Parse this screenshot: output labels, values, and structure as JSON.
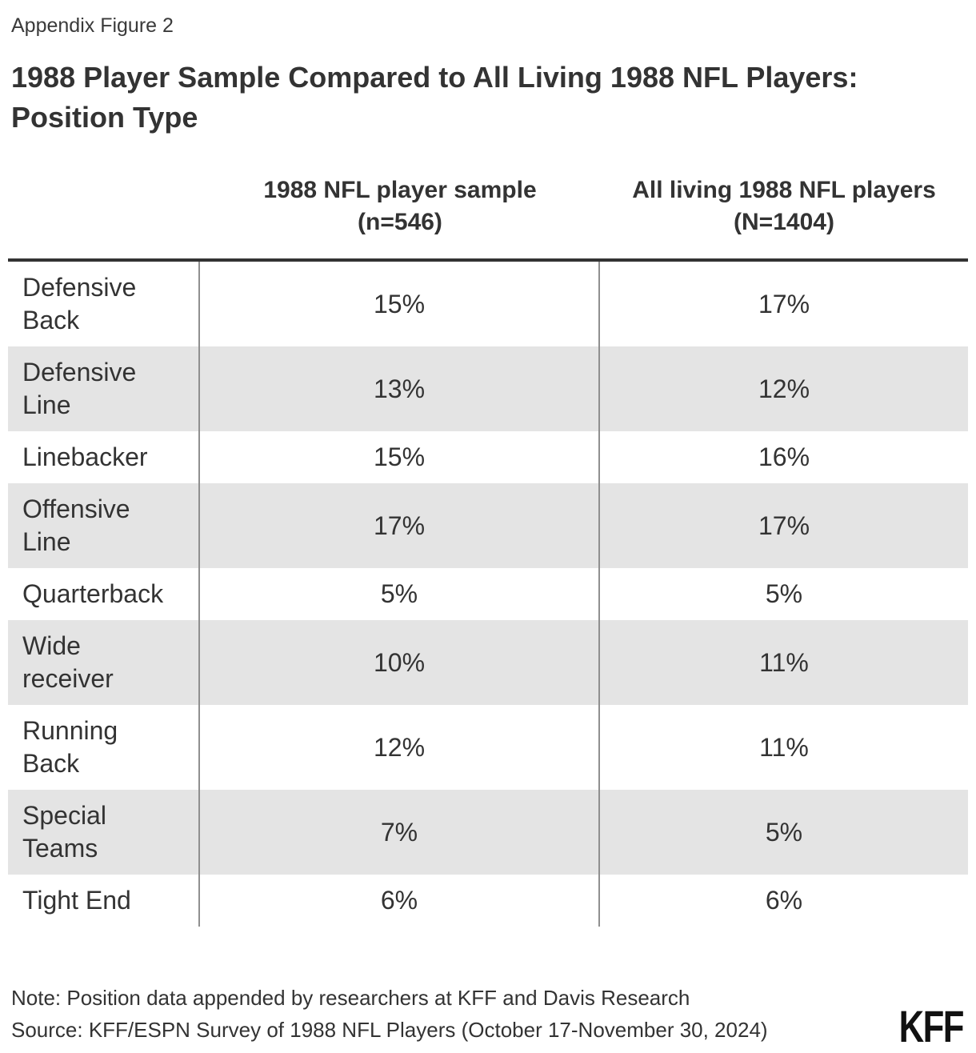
{
  "figure_label": "Appendix Figure 2",
  "title": "1988 Player Sample Compared to All Living 1988 NFL Players:\nPosition Type",
  "table": {
    "columns": [
      "1988 NFL player sample\n(n=546)",
      "All living 1988 NFL players\n(N=1404)"
    ],
    "rows": [
      {
        "label": "Defensive\nBack",
        "sample": "15%",
        "all_living": "17%"
      },
      {
        "label": "Defensive\nLine",
        "sample": "13%",
        "all_living": "12%"
      },
      {
        "label": "Linebacker",
        "sample": "15%",
        "all_living": "16%"
      },
      {
        "label": "Offensive\nLine",
        "sample": "17%",
        "all_living": "17%"
      },
      {
        "label": "Quarterback",
        "sample": "5%",
        "all_living": "5%"
      },
      {
        "label": "Wide\nreceiver",
        "sample": "10%",
        "all_living": "11%"
      },
      {
        "label": "Running\nBack",
        "sample": "12%",
        "all_living": "11%"
      },
      {
        "label": "Special\nTeams",
        "sample": "7%",
        "all_living": "5%"
      },
      {
        "label": "Tight End",
        "sample": "6%",
        "all_living": "6%"
      }
    ]
  },
  "note": "Note: Position data appended by researchers at KFF and Davis Research",
  "source": "Source: KFF/ESPN Survey of 1988 NFL Players (October 17-November 30, 2024)",
  "logo": "KFF",
  "colors": {
    "text": "#333333",
    "stripe": "#e4e4e4",
    "rule": "#333333",
    "divider": "#8f8f8f",
    "logo": "#111111"
  },
  "chart_data": {
    "type": "table",
    "title": "1988 Player Sample Compared to All Living 1988 NFL Players: Position Type",
    "categories": [
      "Defensive Back",
      "Defensive Line",
      "Linebacker",
      "Offensive Line",
      "Quarterback",
      "Wide receiver",
      "Running Back",
      "Special Teams",
      "Tight End"
    ],
    "series": [
      {
        "name": "1988 NFL player sample (n=546)",
        "unit": "%",
        "values": [
          15,
          13,
          15,
          17,
          5,
          10,
          12,
          7,
          6
        ]
      },
      {
        "name": "All living 1988 NFL players (N=1404)",
        "unit": "%",
        "values": [
          17,
          12,
          16,
          17,
          5,
          11,
          11,
          5,
          6
        ]
      }
    ]
  }
}
